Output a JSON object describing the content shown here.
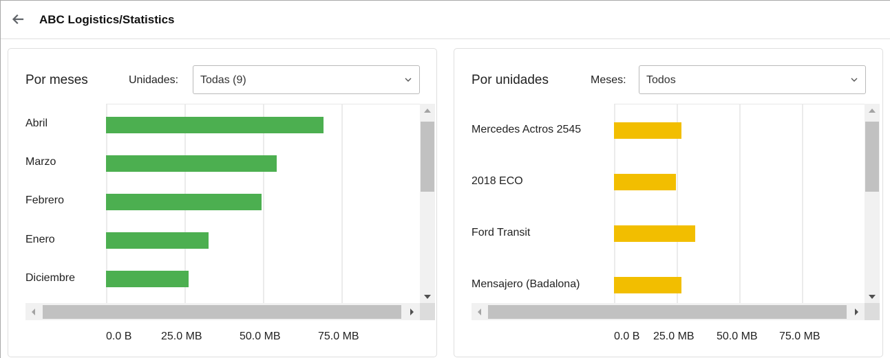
{
  "header": {
    "back_icon": "arrow-left-icon",
    "title": "ABC Logistics/Statistics"
  },
  "left_panel": {
    "title": "Por meses",
    "filter_label": "Unidades:",
    "filter_value": "Todas (9)",
    "bar_color": "#4caf50",
    "categories": [
      "Abril",
      "Marzo",
      "Febrero",
      "Enero",
      "Diciembre"
    ],
    "x_ticks": [
      "0.0 B",
      "25.0 MB",
      "50.0 MB",
      "75.0 MB"
    ]
  },
  "right_panel": {
    "title": "Por unidades",
    "filter_label": "Meses:",
    "filter_value": "Todos",
    "bar_color": "#f2be00",
    "categories": [
      "Mercedes Actros 2545",
      "2018 ECO",
      "Ford Transit",
      "Mensajero (Badalona)"
    ],
    "x_ticks": [
      "0.0 B",
      "25.0 MB",
      "50.0 MB",
      "75.0 MB"
    ]
  },
  "chart_data": [
    {
      "type": "bar",
      "orientation": "horizontal",
      "title": "Por meses",
      "filter": {
        "label": "Unidades:",
        "value": "Todas (9)"
      },
      "categories": [
        "Abril",
        "Marzo",
        "Febrero",
        "Enero",
        "Diciembre"
      ],
      "values": [
        69.3,
        54.4,
        49.6,
        32.7,
        26.3
      ],
      "unit": "MB",
      "xlabel": "",
      "ylabel": "",
      "x_ticks": [
        "0.0 B",
        "25.0 MB",
        "50.0 MB",
        "75.0 MB"
      ],
      "xlim": [
        0,
        100
      ],
      "grid": true,
      "legend": "none",
      "color": "#4caf50"
    },
    {
      "type": "bar",
      "orientation": "horizontal",
      "title": "Por unidades",
      "filter": {
        "label": "Meses:",
        "value": "Todos"
      },
      "categories": [
        "Mercedes Actros 2545",
        "2018 ECO",
        "Ford Transit",
        "Mensajero (Badalona)"
      ],
      "values": [
        26.8,
        24.6,
        32.2,
        26.8
      ],
      "unit": "MB",
      "xlabel": "",
      "ylabel": "",
      "x_ticks": [
        "0.0 B",
        "25.0 MB",
        "50.0 MB",
        "75.0 MB"
      ],
      "xlim": [
        0,
        100
      ],
      "grid": true,
      "legend": "none",
      "color": "#f2be00"
    }
  ]
}
